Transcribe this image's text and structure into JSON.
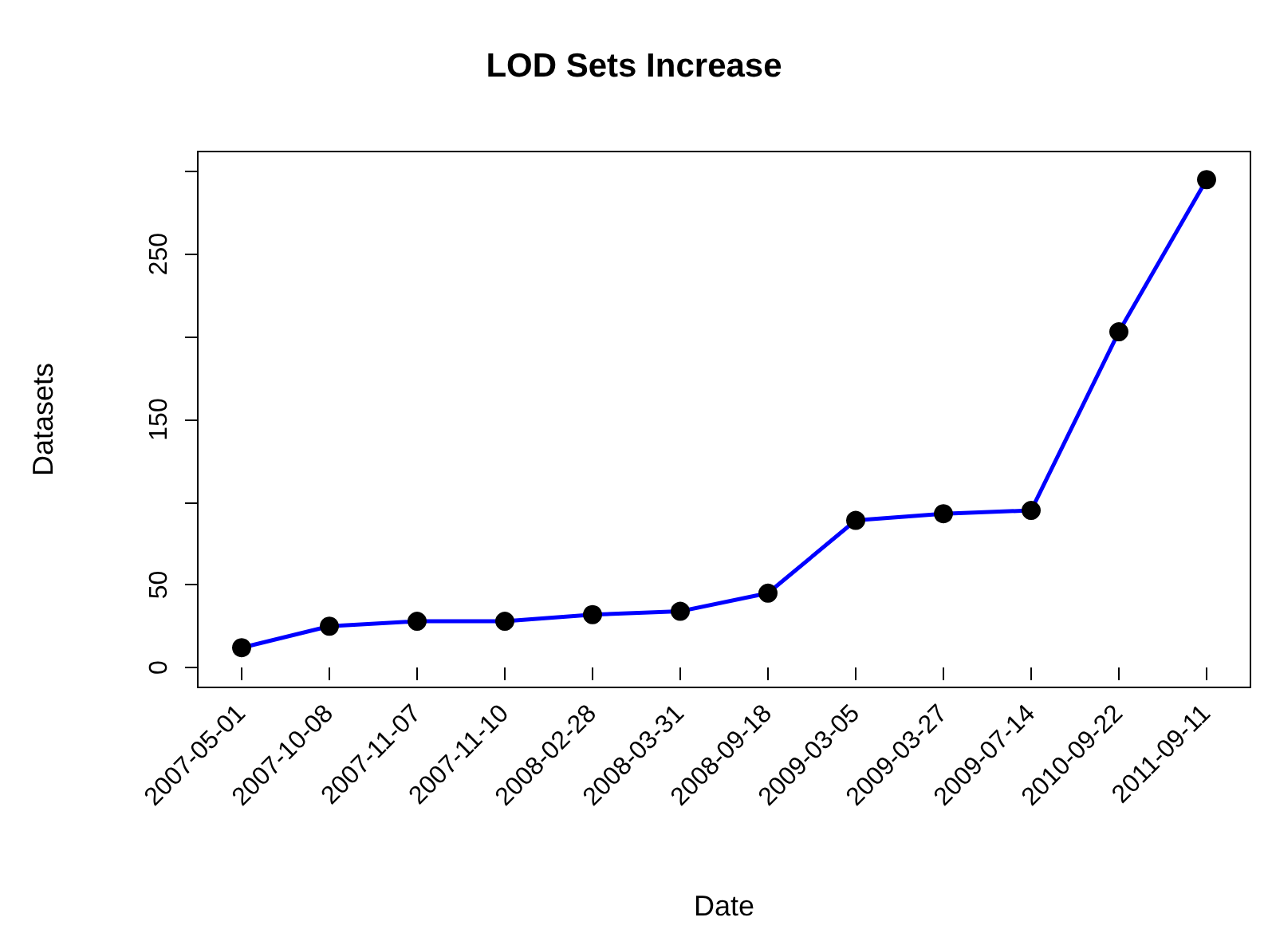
{
  "chart_data": {
    "type": "line",
    "title": "LOD Sets Increase",
    "xlabel": "Date",
    "ylabel": "Datasets",
    "categories": [
      "2007-05-01",
      "2007-10-08",
      "2007-11-07",
      "2007-11-10",
      "2008-02-28",
      "2008-03-31",
      "2008-09-18",
      "2009-03-05",
      "2009-03-27",
      "2009-07-14",
      "2010-09-22",
      "2011-09-11"
    ],
    "series": [
      {
        "color": "#0000ff",
        "values": [
          12,
          25,
          28,
          28,
          32,
          34,
          45,
          89,
          93,
          95,
          203,
          295
        ]
      }
    ],
    "ylim": [
      -12,
      312
    ],
    "yticks": [
      0,
      50,
      {
        "value": 100,
        "label": null
      },
      150,
      {
        "value": 200,
        "label": null
      },
      250,
      {
        "value": 300,
        "label": null
      }
    ],
    "marker": "circle",
    "line_style": "solid",
    "grid": false
  }
}
